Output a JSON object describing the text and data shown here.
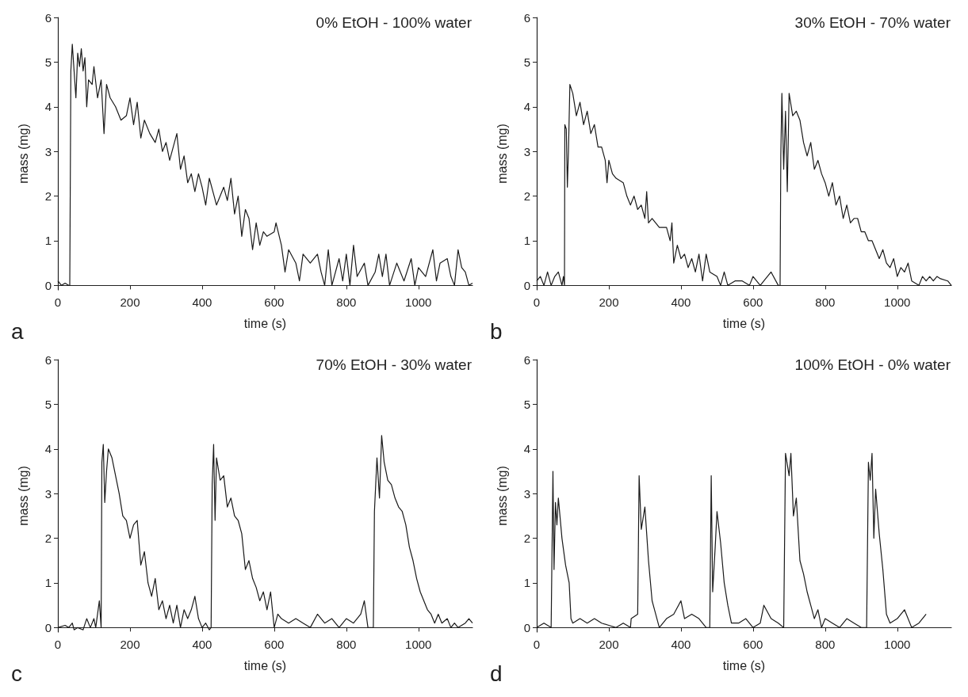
{
  "chart_data": [
    {
      "type": "line",
      "title": "0% EtOH - 100% water",
      "xlabel": "time (s)",
      "ylabel": "mass (mg)",
      "annotations": [
        "a"
      ],
      "xlim": [
        0,
        1150
      ],
      "xticks": [
        0,
        200,
        400,
        600,
        800,
        1000
      ],
      "ylim": [
        -0.1,
        6
      ],
      "yticks": [
        0,
        1,
        2,
        3,
        4,
        5,
        6
      ],
      "grid": false,
      "marker": "none",
      "line_style": "solid",
      "series": [
        {
          "color": "#1a1a1a",
          "x": [
            0,
            10,
            20,
            30,
            33,
            36,
            40,
            45,
            50,
            55,
            60,
            65,
            70,
            75,
            80,
            85,
            95,
            100,
            110,
            120,
            128,
            135,
            145,
            160,
            175,
            190,
            200,
            210,
            220,
            230,
            240,
            255,
            270,
            280,
            290,
            300,
            310,
            330,
            340,
            350,
            360,
            370,
            380,
            390,
            400,
            410,
            420,
            430,
            440,
            460,
            470,
            480,
            490,
            500,
            510,
            520,
            530,
            540,
            550,
            560,
            570,
            580,
            600,
            605,
            620,
            630,
            640,
            660,
            670,
            680,
            700,
            720,
            730,
            740,
            750,
            760,
            780,
            790,
            800,
            810,
            820,
            830,
            850,
            860,
            880,
            890,
            900,
            910,
            920,
            940,
            960,
            980,
            990,
            1000,
            1020,
            1040,
            1050,
            1060,
            1080,
            1090,
            1100,
            1110,
            1120,
            1130,
            1140,
            1150
          ],
          "values": [
            0.1,
            0,
            0.05,
            0,
            0,
            4.8,
            5.4,
            4.8,
            4.2,
            5.2,
            4.9,
            5.3,
            4.8,
            5.1,
            4.0,
            4.6,
            4.5,
            4.9,
            4.2,
            4.6,
            3.4,
            4.5,
            4.2,
            4.0,
            3.7,
            3.8,
            4.2,
            3.6,
            4.1,
            3.3,
            3.7,
            3.4,
            3.2,
            3.5,
            3.0,
            3.2,
            2.8,
            3.4,
            2.6,
            2.9,
            2.3,
            2.5,
            2.1,
            2.5,
            2.2,
            1.8,
            2.4,
            2.1,
            1.8,
            2.2,
            1.9,
            2.4,
            1.6,
            2.0,
            1.1,
            1.7,
            1.5,
            0.8,
            1.4,
            0.9,
            1.2,
            1.1,
            1.2,
            1.4,
            0.9,
            0.3,
            0.8,
            0.5,
            0.1,
            0.7,
            0.5,
            0.7,
            0.3,
            0,
            0.8,
            0,
            0.6,
            0.1,
            0.7,
            0,
            0.9,
            0.2,
            0.5,
            0,
            0.3,
            0.7,
            0.2,
            0.7,
            0,
            0.5,
            0.1,
            0.6,
            0,
            0.4,
            0.2,
            0.8,
            0.1,
            0.5,
            0.6,
            0.2,
            0,
            0.8,
            0.4,
            0.3,
            0,
            0.05
          ]
        }
      ]
    },
    {
      "type": "line",
      "title": "30% EtOH - 70% water",
      "xlabel": "time (s)",
      "ylabel": "mass (mg)",
      "annotations": [
        "b"
      ],
      "xlim": [
        0,
        1150
      ],
      "xticks": [
        0,
        200,
        400,
        600,
        800,
        1000
      ],
      "ylim": [
        -0.1,
        6
      ],
      "yticks": [
        0,
        1,
        2,
        3,
        4,
        5,
        6
      ],
      "grid": false,
      "marker": "none",
      "line_style": "solid",
      "series": [
        {
          "color": "#1a1a1a",
          "x": [
            0,
            10,
            20,
            30,
            40,
            50,
            60,
            70,
            74,
            77,
            78,
            82,
            85,
            88,
            92,
            100,
            110,
            120,
            130,
            140,
            150,
            160,
            170,
            180,
            190,
            195,
            200,
            210,
            220,
            240,
            250,
            260,
            270,
            280,
            290,
            300,
            305,
            310,
            320,
            340,
            360,
            370,
            375,
            380,
            390,
            400,
            410,
            420,
            430,
            440,
            450,
            460,
            470,
            480,
            500,
            510,
            520,
            530,
            550,
            570,
            590,
            600,
            620,
            630,
            650,
            670,
            675,
            677,
            680,
            685,
            690,
            695,
            700,
            710,
            720,
            730,
            740,
            750,
            760,
            770,
            780,
            790,
            800,
            810,
            820,
            830,
            840,
            850,
            860,
            870,
            880,
            890,
            900,
            910,
            920,
            930,
            940,
            950,
            960,
            970,
            980,
            990,
            1000,
            1010,
            1020,
            1030,
            1040,
            1060,
            1070,
            1080,
            1090,
            1100,
            1110,
            1120,
            1140,
            1150
          ],
          "values": [
            0.1,
            0.2,
            0,
            0.3,
            0,
            0.2,
            0.3,
            0,
            0.2,
            0,
            3.6,
            3.5,
            2.2,
            3.0,
            4.5,
            4.3,
            3.8,
            4.1,
            3.6,
            3.9,
            3.4,
            3.6,
            3.1,
            3.1,
            2.8,
            2.3,
            2.8,
            2.5,
            2.4,
            2.3,
            2.0,
            1.8,
            2.0,
            1.7,
            1.8,
            1.5,
            2.1,
            1.4,
            1.5,
            1.3,
            1.3,
            1.0,
            1.4,
            0.5,
            0.9,
            0.6,
            0.7,
            0.4,
            0.6,
            0.3,
            0.7,
            0.1,
            0.7,
            0.3,
            0.2,
            0,
            0.3,
            0,
            0.1,
            0.1,
            0,
            0.2,
            0,
            0.1,
            0.3,
            0,
            0,
            2.9,
            4.3,
            2.6,
            3.9,
            2.1,
            4.3,
            3.8,
            3.9,
            3.7,
            3.2,
            2.9,
            3.2,
            2.6,
            2.8,
            2.5,
            2.3,
            2.0,
            2.3,
            1.8,
            2.0,
            1.5,
            1.8,
            1.4,
            1.5,
            1.5,
            1.2,
            1.2,
            1.0,
            1.0,
            0.8,
            0.6,
            0.8,
            0.5,
            0.4,
            0.6,
            0.2,
            0.4,
            0.3,
            0.5,
            0.1,
            0,
            0.2,
            0.1,
            0.2,
            0.1,
            0.2,
            0.15,
            0.1,
            0
          ]
        }
      ]
    },
    {
      "type": "line",
      "title": "70% EtOH - 30% water",
      "xlabel": "time (s)",
      "ylabel": "mass (mg)",
      "annotations": [
        "c"
      ],
      "xlim": [
        0,
        1150
      ],
      "xticks": [
        0,
        200,
        400,
        600,
        800,
        1000
      ],
      "ylim": [
        -0.1,
        6
      ],
      "yticks": [
        0,
        1,
        2,
        3,
        4,
        5,
        6
      ],
      "grid": false,
      "marker": "none",
      "line_style": "solid",
      "series": [
        {
          "color": "#1a1a1a",
          "x": [
            0,
            20,
            30,
            40,
            45,
            55,
            70,
            80,
            90,
            100,
            105,
            115,
            120,
            122,
            126,
            130,
            135,
            140,
            150,
            160,
            170,
            180,
            190,
            200,
            210,
            220,
            230,
            240,
            250,
            260,
            270,
            280,
            290,
            300,
            310,
            320,
            330,
            340,
            350,
            360,
            370,
            380,
            390,
            400,
            410,
            420,
            425,
            428,
            432,
            436,
            440,
            450,
            460,
            470,
            480,
            490,
            500,
            510,
            520,
            530,
            540,
            550,
            560,
            570,
            580,
            590,
            600,
            610,
            620,
            640,
            660,
            680,
            700,
            720,
            740,
            760,
            780,
            800,
            820,
            840,
            850,
            860,
            875,
            878,
            885,
            892,
            898,
            905,
            915,
            925,
            935,
            945,
            955,
            965,
            975,
            985,
            995,
            1005,
            1015,
            1025,
            1035,
            1045,
            1055,
            1065,
            1080,
            1090,
            1100,
            1110,
            1130,
            1140,
            1150
          ],
          "values": [
            0,
            0.05,
            0,
            0.1,
            -0.05,
            0,
            -0.05,
            0.2,
            0,
            0.2,
            0,
            0.6,
            0,
            3.7,
            4.1,
            2.8,
            3.5,
            4.0,
            3.8,
            3.4,
            3.0,
            2.5,
            2.4,
            2.0,
            2.3,
            2.4,
            1.4,
            1.7,
            1.0,
            0.7,
            1.1,
            0.4,
            0.6,
            0.2,
            0.5,
            0.1,
            0.5,
            0,
            0.4,
            0.2,
            0.4,
            0.7,
            0.2,
            0,
            0.1,
            -0.05,
            0,
            3.2,
            4.1,
            2.4,
            3.8,
            3.3,
            3.4,
            2.7,
            2.9,
            2.5,
            2.4,
            2.1,
            1.3,
            1.5,
            1.1,
            0.9,
            0.6,
            0.8,
            0.4,
            0.8,
            0,
            0.3,
            0.2,
            0.1,
            0.2,
            0.1,
            0,
            0.3,
            0.1,
            0.2,
            0,
            0.2,
            0.1,
            0.3,
            0.6,
            0,
            0,
            2.6,
            3.8,
            2.9,
            4.3,
            3.7,
            3.3,
            3.2,
            2.9,
            2.7,
            2.6,
            2.3,
            1.8,
            1.5,
            1.1,
            0.8,
            0.6,
            0.4,
            0.3,
            0.1,
            0.3,
            0.1,
            0.2,
            0,
            0.1,
            0,
            0.1,
            0.2,
            0.1
          ]
        }
      ]
    },
    {
      "type": "line",
      "title": "100% EtOH - 0% water",
      "xlabel": "time (s)",
      "ylabel": "mass (mg)",
      "annotations": [
        "d"
      ],
      "xlim": [
        0,
        1150
      ],
      "xticks": [
        0,
        200,
        400,
        600,
        800,
        1000
      ],
      "ylim": [
        -0.1,
        6
      ],
      "yticks": [
        0,
        1,
        2,
        3,
        4,
        5,
        6
      ],
      "grid": false,
      "marker": "none",
      "line_style": "solid",
      "series": [
        {
          "color": "#1a1a1a",
          "x": [
            0,
            20,
            40,
            45,
            48,
            52,
            56,
            60,
            70,
            80,
            90,
            95,
            100,
            120,
            140,
            160,
            180,
            200,
            220,
            240,
            260,
            262,
            280,
            284,
            290,
            300,
            310,
            320,
            330,
            340,
            360,
            380,
            400,
            410,
            430,
            450,
            470,
            480,
            484,
            488,
            495,
            500,
            510,
            520,
            530,
            540,
            560,
            580,
            600,
            620,
            630,
            650,
            670,
            685,
            690,
            700,
            705,
            712,
            720,
            730,
            740,
            750,
            760,
            770,
            780,
            790,
            800,
            820,
            840,
            860,
            880,
            900,
            915,
            920,
            925,
            930,
            935,
            940,
            950,
            960,
            970,
            980,
            1000,
            1020,
            1040,
            1060,
            1080
          ],
          "values": [
            0,
            0.1,
            0,
            3.5,
            1.3,
            2.8,
            2.3,
            2.9,
            2.0,
            1.4,
            1.0,
            0.2,
            0.1,
            0.2,
            0.1,
            0.2,
            0.1,
            0.05,
            0,
            0.1,
            0,
            0.2,
            0.3,
            3.4,
            2.2,
            2.7,
            1.5,
            0.6,
            0.3,
            0,
            0.2,
            0.3,
            0.6,
            0.2,
            0.3,
            0.2,
            0,
            0,
            3.4,
            0.8,
            1.8,
            2.6,
            1.9,
            1.0,
            0.5,
            0.1,
            0.1,
            0.2,
            0,
            0.1,
            0.5,
            0.2,
            0.1,
            0,
            3.9,
            3.4,
            3.9,
            2.5,
            2.9,
            1.5,
            1.2,
            0.8,
            0.5,
            0.2,
            0.4,
            0,
            0.2,
            0.1,
            0,
            0.2,
            0.1,
            0,
            0,
            3.7,
            3.3,
            3.9,
            2.0,
            3.1,
            2.1,
            1.3,
            0.3,
            0.1,
            0.2,
            0.4,
            0,
            0.1,
            0.3
          ]
        }
      ]
    }
  ]
}
